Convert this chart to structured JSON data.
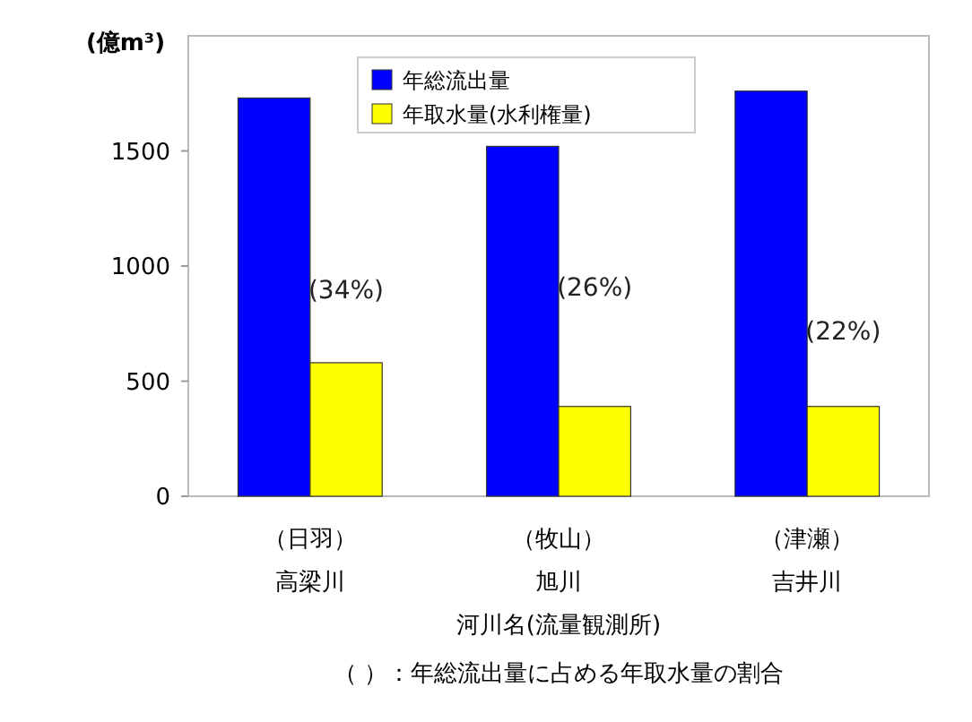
{
  "chart_data": {
    "type": "bar",
    "ylabel": "(億m³)",
    "xlabel": "河川名(流量観測所)",
    "categories": [
      "（日羽）高梁川",
      "（牧山）旭川",
      "（津瀬）吉井川"
    ],
    "series": [
      {
        "name": "年総流出量",
        "color": "#0000ff",
        "values": [
          1730,
          1520,
          1760
        ]
      },
      {
        "name": "年取水量(水利権量)",
        "color": "#ffff00",
        "values": [
          580,
          390,
          390
        ]
      }
    ],
    "ylim": [
      0,
      2000
    ],
    "yticks": [
      0,
      500,
      1000,
      1500
    ],
    "grid": false,
    "legend": "top",
    "annotations": [
      {
        "text": "(34%)",
        "x": "（日羽）高梁川",
        "y": 860
      },
      {
        "text": "(26%)",
        "x": "（牧山）旭川",
        "y": 870
      },
      {
        "text": "(22%)",
        "x": "（津瀬）吉井川",
        "y": 680
      },
      "（ ）：年総流出量に占める年取水量の割合"
    ]
  }
}
